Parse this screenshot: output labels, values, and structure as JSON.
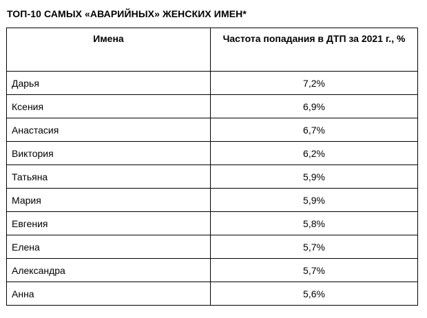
{
  "title": "ТОП-10 САМЫХ «АВАРИЙНЫХ» ЖЕНСКИХ ИМЕН*",
  "table": {
    "headers": {
      "name": "Имена",
      "frequency": "Частота попадания в ДТП за 2021 г., %"
    },
    "rows": [
      {
        "name": "Дарья",
        "frequency": "7,2%"
      },
      {
        "name": "Ксения",
        "frequency": "6,9%"
      },
      {
        "name": "Анастасия",
        "frequency": "6,7%"
      },
      {
        "name": "Виктория",
        "frequency": "6,2%"
      },
      {
        "name": "Татьяна",
        "frequency": "5,9%"
      },
      {
        "name": "Мария",
        "frequency": "5,9%"
      },
      {
        "name": "Евгения",
        "frequency": "5,8%"
      },
      {
        "name": "Елена",
        "frequency": "5,7%"
      },
      {
        "name": "Александра",
        "frequency": "5,7%"
      },
      {
        "name": "Анна",
        "frequency": "5,6%"
      }
    ]
  }
}
